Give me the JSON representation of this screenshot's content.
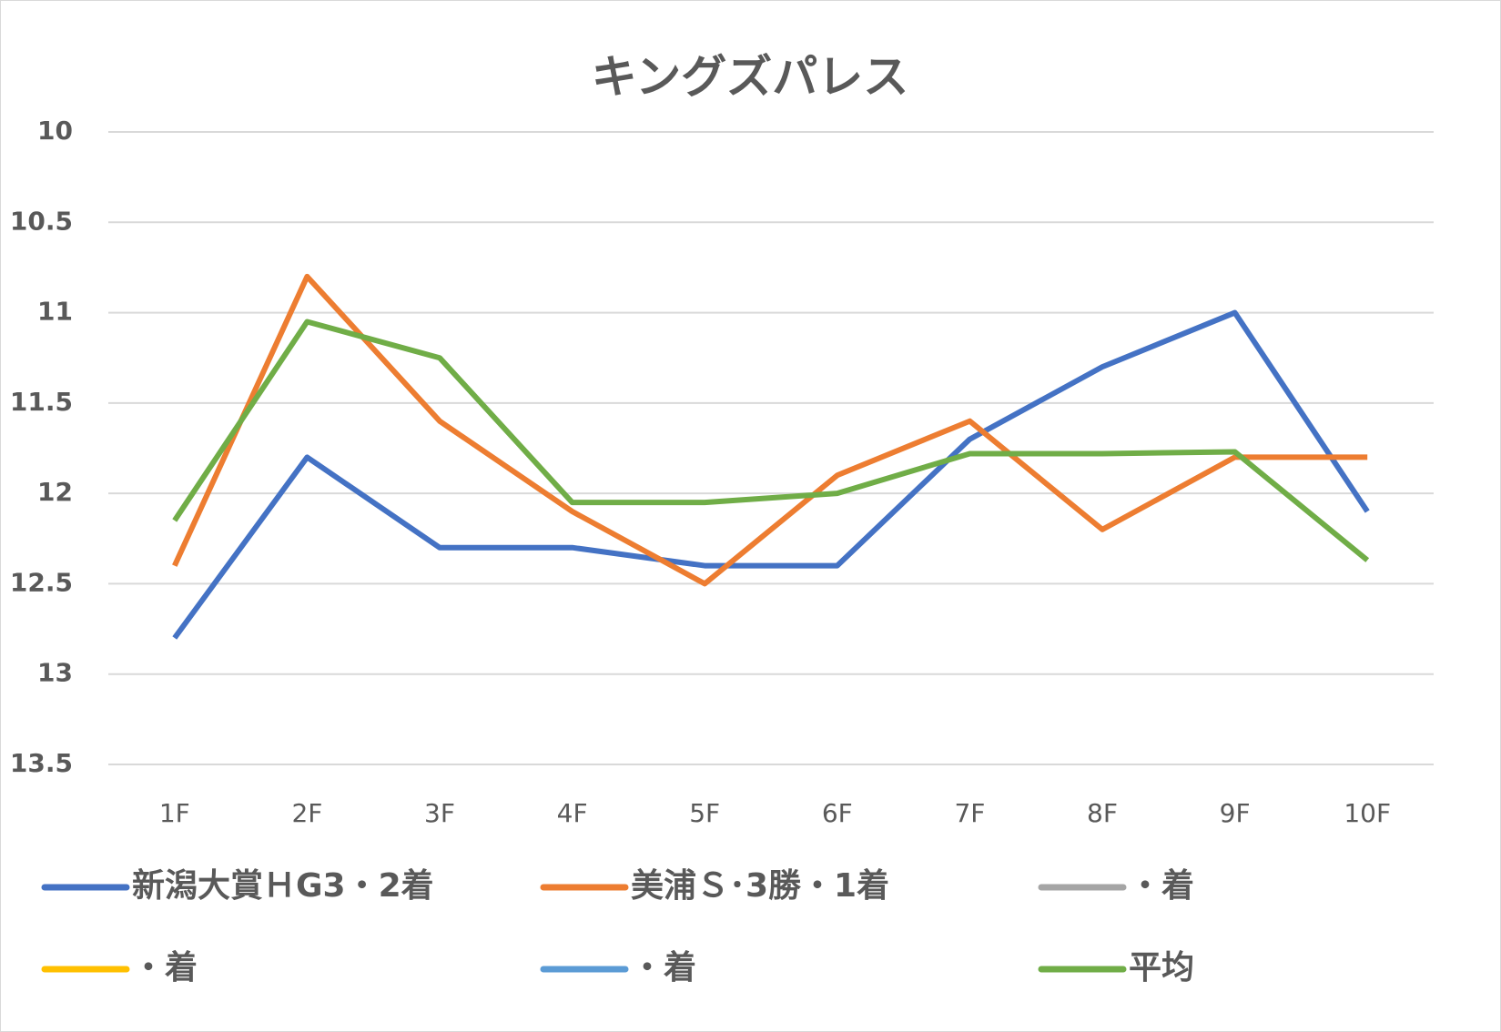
{
  "chart_data": {
    "type": "line",
    "title": "キングズパレス",
    "categories": [
      "1F",
      "2F",
      "3F",
      "4F",
      "5F",
      "6F",
      "7F",
      "8F",
      "9F",
      "10F"
    ],
    "series": [
      {
        "name": "新潟大賞ＨG3・2着",
        "color": "#4472c4",
        "values": [
          12.8,
          11.8,
          12.3,
          12.3,
          12.4,
          12.4,
          11.7,
          11.3,
          11.0,
          12.1
        ]
      },
      {
        "name": "美浦Ｓ･3勝・1着",
        "color": "#ed7d31",
        "values": [
          12.4,
          10.8,
          11.6,
          12.1,
          12.5,
          11.9,
          11.6,
          12.2,
          11.8,
          11.8
        ]
      },
      {
        "name": "・着",
        "color": "#a5a5a5",
        "values": [
          null,
          null,
          null,
          null,
          null,
          null,
          null,
          null,
          null,
          null
        ]
      },
      {
        "name": "・着",
        "color": "#ffc000",
        "values": [
          null,
          null,
          null,
          null,
          null,
          null,
          null,
          null,
          null,
          null
        ]
      },
      {
        "name": "・着",
        "color": "#5b9bd5",
        "values": [
          null,
          null,
          null,
          null,
          null,
          null,
          null,
          null,
          null,
          null
        ]
      },
      {
        "name": "平均",
        "color": "#70ad47",
        "values": [
          12.15,
          11.05,
          11.25,
          12.05,
          12.05,
          12.0,
          11.78,
          11.78,
          11.77,
          12.37
        ]
      }
    ],
    "ylim": [
      10,
      13.5
    ],
    "yticks": [
      10,
      10.5,
      11,
      11.5,
      12,
      12.5,
      13,
      13.5
    ],
    "y_inverted": true,
    "grid": true,
    "legend": "bottom"
  }
}
